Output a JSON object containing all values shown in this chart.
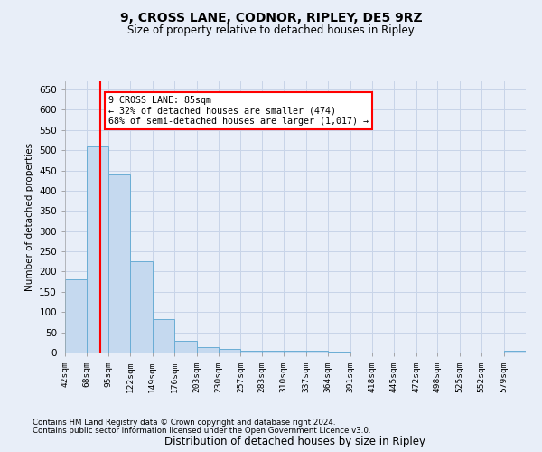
{
  "title1": "9, CROSS LANE, CODNOR, RIPLEY, DE5 9RZ",
  "title2": "Size of property relative to detached houses in Ripley",
  "xlabel": "Distribution of detached houses by size in Ripley",
  "ylabel": "Number of detached properties",
  "bin_labels": [
    "42sqm",
    "68sqm",
    "95sqm",
    "122sqm",
    "149sqm",
    "176sqm",
    "203sqm",
    "230sqm",
    "257sqm",
    "283sqm",
    "310sqm",
    "337sqm",
    "364sqm",
    "391sqm",
    "418sqm",
    "445sqm",
    "472sqm",
    "498sqm",
    "525sqm",
    "552sqm",
    "579sqm"
  ],
  "bin_edges": [
    42,
    68,
    95,
    122,
    149,
    176,
    203,
    230,
    257,
    283,
    310,
    337,
    364,
    391,
    418,
    445,
    472,
    498,
    525,
    552,
    579,
    606
  ],
  "values": [
    180,
    510,
    440,
    225,
    83,
    28,
    14,
    8,
    5,
    5,
    5,
    5,
    3,
    1,
    1,
    1,
    0,
    0,
    0,
    0,
    5
  ],
  "bar_color": "#c5d9ef",
  "bar_edge_color": "#6aadd5",
  "red_line_x": 85,
  "annotation_text": "9 CROSS LANE: 85sqm\n← 32% of detached houses are smaller (474)\n68% of semi-detached houses are larger (1,017) →",
  "annotation_box_color": "white",
  "annotation_box_edge": "red",
  "ylim": [
    0,
    670
  ],
  "yticks": [
    0,
    50,
    100,
    150,
    200,
    250,
    300,
    350,
    400,
    450,
    500,
    550,
    600,
    650
  ],
  "footer1": "Contains HM Land Registry data © Crown copyright and database right 2024.",
  "footer2": "Contains public sector information licensed under the Open Government Licence v3.0.",
  "bg_color": "#e8eef8",
  "grid_color": "#c8d4e8"
}
